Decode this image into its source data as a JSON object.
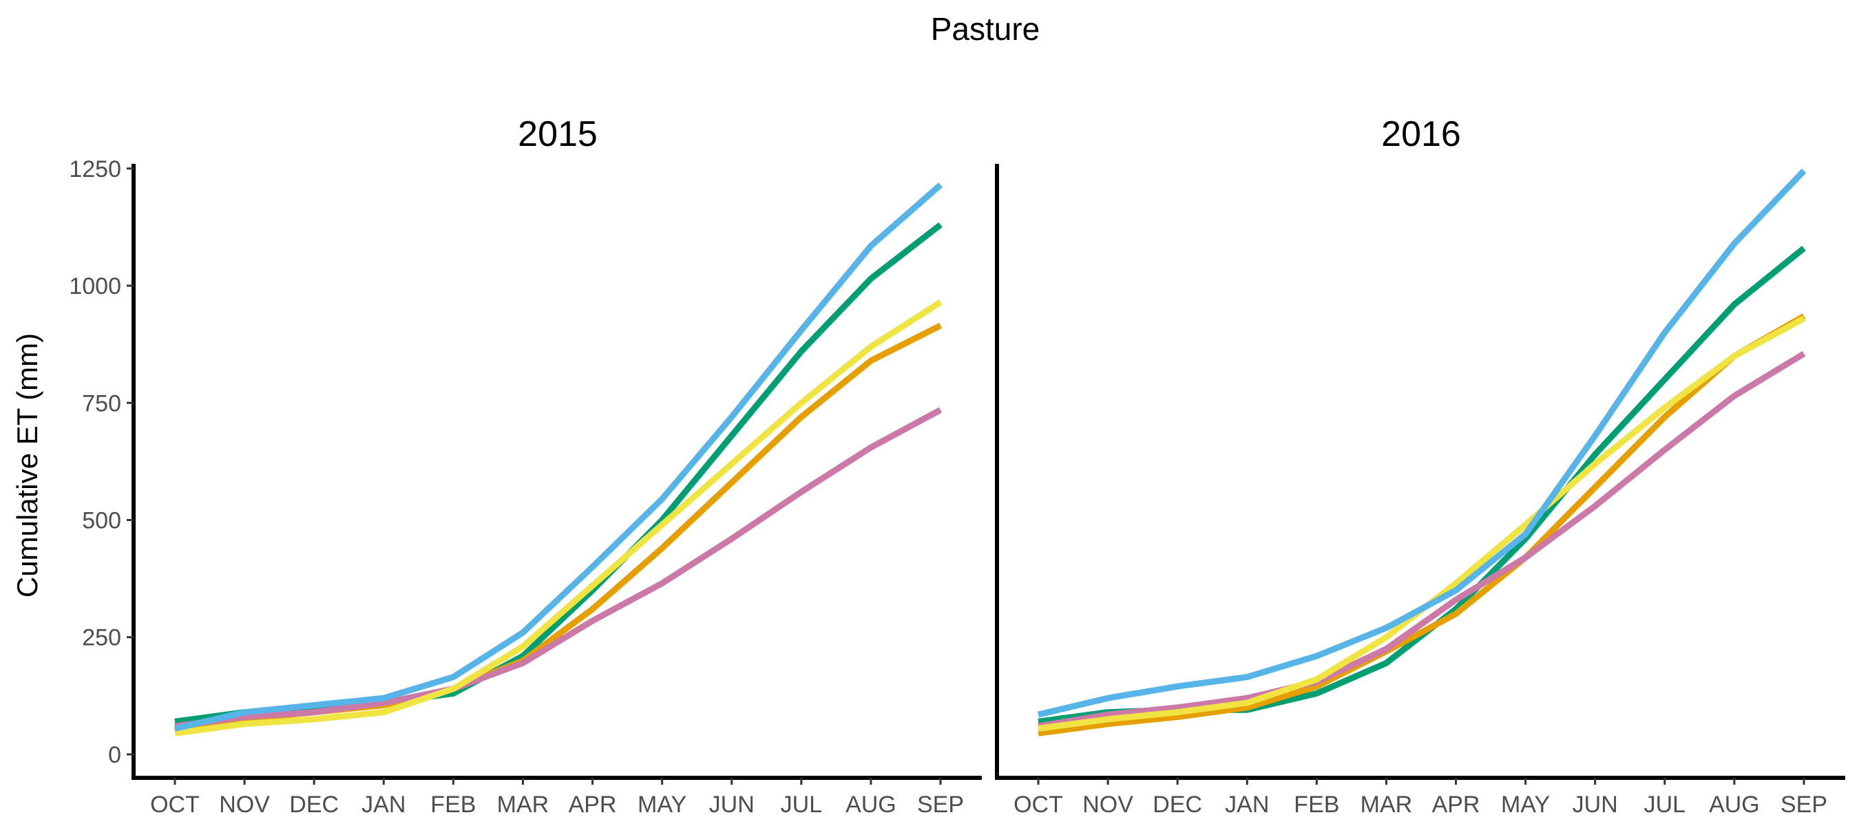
{
  "chart_data": {
    "type": "line",
    "title": "Pasture",
    "ylabel": "Cumulative ET (mm)",
    "xlabel": "",
    "ylim": [
      -50,
      1260
    ],
    "yticks": [
      0,
      250,
      500,
      750,
      1000,
      1250
    ],
    "grid": false,
    "legend": "none",
    "categories": [
      "OCT",
      "NOV",
      "DEC",
      "JAN",
      "FEB",
      "MAR",
      "APR",
      "MAY",
      "JUN",
      "JUL",
      "AUG",
      "SEP"
    ],
    "panels": [
      {
        "title": "2015",
        "series": [
          {
            "color": "#009E73",
            "values": [
              70,
              90,
              100,
              110,
              130,
              210,
              350,
              500,
              680,
              860,
              1015,
              1130
            ]
          },
          {
            "color": "#E69F00",
            "values": [
              50,
              75,
              90,
              105,
              140,
              200,
              310,
              440,
              580,
              720,
              840,
              915
            ]
          },
          {
            "color": "#CC79A7",
            "values": [
              60,
              80,
              90,
              110,
              140,
              195,
              285,
              365,
              460,
              560,
              655,
              735
            ]
          },
          {
            "color": "#F0E442",
            "values": [
              45,
              65,
              75,
              90,
              140,
              230,
              360,
              490,
              620,
              750,
              870,
              965
            ]
          },
          {
            "color": "#56B4E9",
            "values": [
              55,
              90,
              105,
              120,
              165,
              260,
              400,
              545,
              720,
              905,
              1085,
              1215
            ]
          }
        ]
      },
      {
        "title": "2016",
        "series": [
          {
            "color": "#009E73",
            "values": [
              70,
              90,
              95,
              95,
              130,
              195,
              310,
              460,
              640,
              800,
              960,
              1080
            ]
          },
          {
            "color": "#E69F00",
            "values": [
              45,
              65,
              80,
              100,
              145,
              220,
              300,
              420,
              570,
              720,
              850,
              935
            ]
          },
          {
            "color": "#CC79A7",
            "values": [
              60,
              85,
              100,
              120,
              155,
              225,
              330,
              420,
              530,
              650,
              765,
              855
            ]
          },
          {
            "color": "#F0E442",
            "values": [
              55,
              75,
              90,
              110,
              160,
              250,
              365,
              490,
              620,
              740,
              850,
              930
            ]
          },
          {
            "color": "#56B4E9",
            "values": [
              85,
              120,
              145,
              165,
              210,
              270,
              350,
              470,
              680,
              900,
              1090,
              1245
            ]
          }
        ]
      }
    ]
  }
}
